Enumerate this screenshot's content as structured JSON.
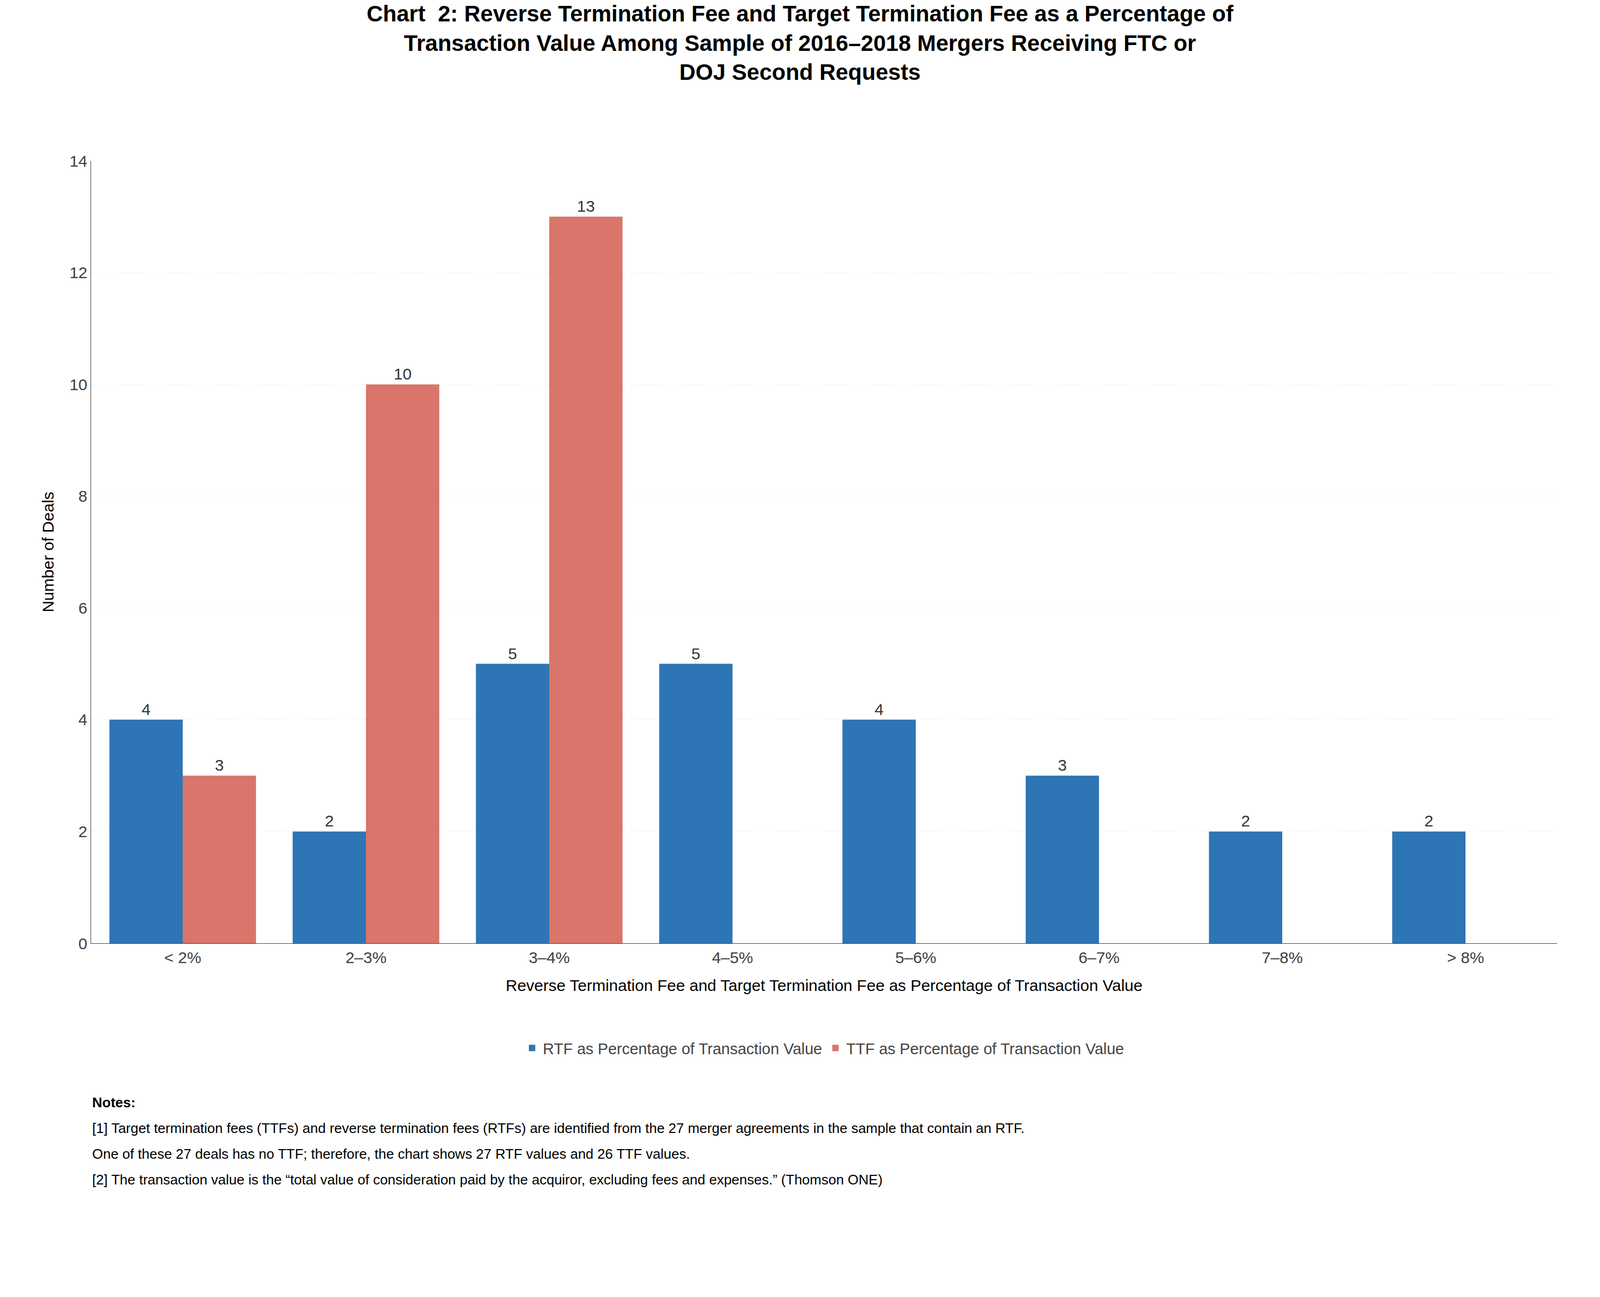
{
  "chart_data": {
    "type": "bar",
    "title": "Chart  2: Reverse Termination Fee and Target Termination Fee as a Percentage of\nTransaction Value Among Sample of 2016–2018 Mergers Receiving FTC or\nDOJ Second Requests",
    "xlabel": "Reverse Termination Fee and Target Termination Fee as Percentage of Transaction Value",
    "ylabel": "Number of Deals",
    "categories": [
      "< 2%",
      "2–3%",
      "3–4%",
      "4–5%",
      "5–6%",
      "6–7%",
      "7–8%",
      "> 8%"
    ],
    "series": [
      {
        "name": "RTF as Percentage of Transaction Value",
        "color": "#2E75B6",
        "values": [
          4,
          2,
          5,
          5,
          4,
          3,
          2,
          2
        ]
      },
      {
        "name": "TTF as Percentage of Transaction Value",
        "color": "#D9756A",
        "values": [
          3,
          10,
          13,
          null,
          null,
          null,
          null,
          null
        ]
      }
    ],
    "ylim": [
      0,
      14
    ],
    "yticks": [
      0,
      2,
      4,
      6,
      8,
      10,
      12,
      14
    ],
    "grid": true,
    "legend": "bottom",
    "data_labels": true,
    "annotations": [
      "Notes:",
      "[1] Target termination fees (TTFs) and reverse termination fees (RTFs) are identified from the 27 merger agreements in the sample that contain an RTF.",
      "One of these 27 deals has no TTF; therefore, the chart shows 27 RTF values and 26 TTF values.",
      "[2] The transaction value is the “total value of consideration paid by the acquiror, excluding fees and expenses.” (Thomson ONE)"
    ]
  }
}
